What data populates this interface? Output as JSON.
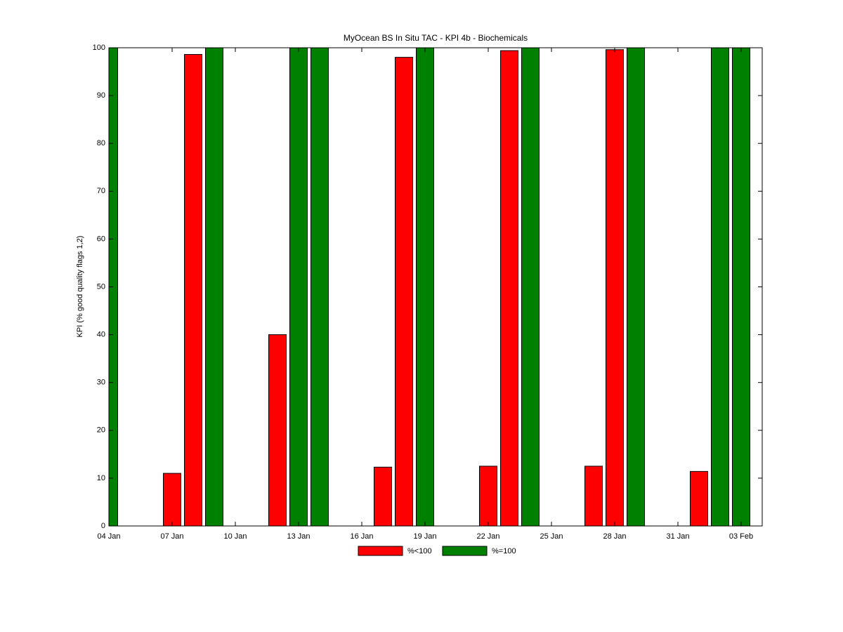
{
  "chart_data": {
    "type": "bar",
    "title": "MyOcean  BS In Situ TAC - KPI 4b - Biochemicals",
    "y_label": "KPI (% good quality flags 1,2)",
    "categories": [
      "04 Jan",
      null,
      null,
      "07 Jan",
      null,
      null,
      "10 Jan",
      null,
      null,
      "13 Jan",
      null,
      null,
      "16 Jan",
      null,
      null,
      "19 Jan",
      null,
      null,
      "22 Jan",
      null,
      null,
      "25 Jan",
      null,
      null,
      "28 Jan",
      null,
      null,
      "31 Jan",
      null,
      null,
      "03 Feb",
      null
    ],
    "series": [
      {
        "name": "%<100",
        "color": "#ff0000",
        "values": [
          null,
          null,
          null,
          11.0,
          98.6,
          null,
          null,
          null,
          40.0,
          null,
          null,
          null,
          null,
          12.3,
          98.0,
          null,
          null,
          null,
          12.5,
          99.4,
          null,
          null,
          null,
          12.5,
          99.6,
          null,
          null,
          null,
          11.4,
          null,
          null,
          null
        ]
      },
      {
        "name": "%=100",
        "color": "#008000",
        "values": [
          100,
          null,
          null,
          null,
          null,
          100,
          null,
          null,
          null,
          100,
          100,
          null,
          null,
          null,
          null,
          100,
          null,
          null,
          null,
          null,
          100,
          null,
          null,
          null,
          null,
          100,
          null,
          null,
          null,
          100,
          100,
          null
        ]
      }
    ],
    "ylim": [
      0,
      100
    ],
    "yticks": [
      0,
      10,
      20,
      30,
      40,
      50,
      60,
      70,
      80,
      90,
      100
    ],
    "grid": false,
    "legend": "bottom"
  }
}
